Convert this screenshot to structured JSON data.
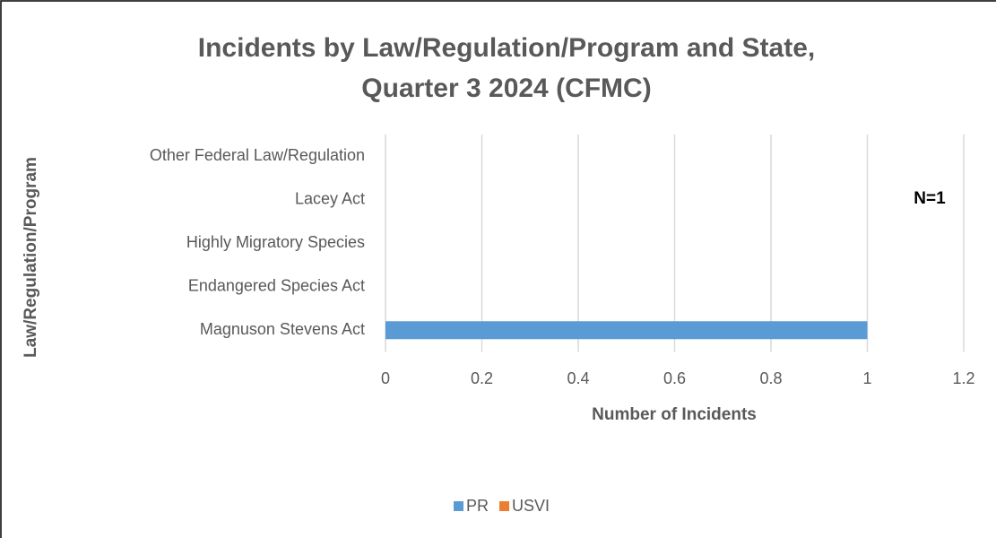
{
  "chart_data": {
    "type": "stacked_bar_horizontal",
    "title": [
      "Incidents by Law/Regulation/Program and State,",
      "Quarter 3 2024 (CFMC)"
    ],
    "x_label": "Number of Incidents",
    "y_label": "Law/Regulation/Program",
    "categories": [
      "Magnuson Stevens Act",
      "Endangered Species Act",
      "Highly Migratory Species",
      "Lacey Act",
      "Other Federal Law/Regulation"
    ],
    "series": [
      {
        "name": "PR",
        "color": "#5b9bd5",
        "values": [
          1,
          0,
          0,
          0,
          0
        ]
      },
      {
        "name": "USVI",
        "color": "#ed7d31",
        "values": [
          0,
          0,
          0,
          0,
          0
        ]
      }
    ],
    "xlim": [
      0,
      1.2
    ],
    "xticks": [
      0,
      0.2,
      0.4,
      0.6,
      0.8,
      1,
      1.2
    ],
    "grid": true,
    "legend": "bottom",
    "annotation": "N=1"
  }
}
